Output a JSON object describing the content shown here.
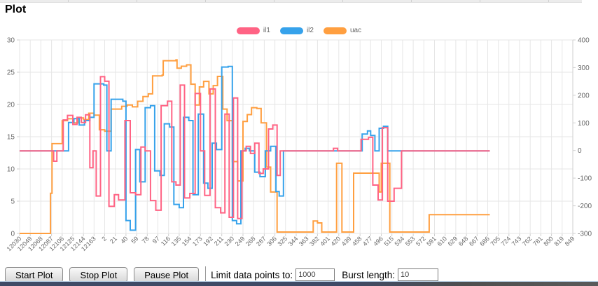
{
  "page": {
    "title": "Plot"
  },
  "legend": {
    "position": "top"
  },
  "controls": {
    "start_button": "Start Plot",
    "stop_button": "Stop Plot",
    "pause_button": "Pause Plot",
    "limit_label": "Limit data points to:",
    "limit_value": "1000",
    "burst_label": "Burst length:",
    "burst_value": "10"
  },
  "colors": {
    "il1": "#ff6384",
    "il2": "#36a2eb",
    "uac": "#ff9f40",
    "grid": "#e6e6e6",
    "axis_text": "#666666"
  },
  "chart_data": {
    "type": "line",
    "step": true,
    "title": "",
    "xlabel": "",
    "ylabel_left": "",
    "ylabel_right": "",
    "grid": true,
    "legend_position": "top",
    "x_tick_labels": [
      "12030",
      "12049",
      "12068",
      "12087",
      "12106",
      "12125",
      "12144",
      "12163",
      "2",
      "21",
      "40",
      "59",
      "78",
      "97",
      "116",
      "135",
      "154",
      "173",
      "192",
      "211",
      "230",
      "249",
      "268",
      "287",
      "306",
      "325",
      "344",
      "363",
      "382",
      "401",
      "420",
      "439",
      "458",
      "477",
      "496",
      "515",
      "534",
      "553",
      "572",
      "591",
      "610",
      "629",
      "648",
      "667",
      "686",
      "705",
      "724",
      "743",
      "762",
      "781",
      "800",
      "819",
      "849"
    ],
    "y_left": {
      "min": 0,
      "max": 30,
      "ticks": [
        0,
        5,
        10,
        15,
        20,
        25,
        30
      ]
    },
    "y_right": {
      "min": -300,
      "max": 400,
      "ticks": [
        -300,
        -200,
        -100,
        0,
        100,
        200,
        300,
        400
      ]
    },
    "series": [
      {
        "name": "il1",
        "axis": "left",
        "color": "#ff6384",
        "points": [
          [
            0,
            12.8
          ],
          [
            3.1,
            12.8
          ],
          [
            3.2,
            11.2
          ],
          [
            3.5,
            12.8
          ],
          [
            4.1,
            17.6
          ],
          [
            4.5,
            18.3
          ],
          [
            5.0,
            16.9
          ],
          [
            5.4,
            18.0
          ],
          [
            5.8,
            17.2
          ],
          [
            6.2,
            18.4
          ],
          [
            6.6,
            10.2
          ],
          [
            6.9,
            12.8
          ],
          [
            7.2,
            5.8
          ],
          [
            7.6,
            24.3
          ],
          [
            8.0,
            23.6
          ],
          [
            8.4,
            4.2
          ],
          [
            8.9,
            6.0
          ],
          [
            9.3,
            5.2
          ],
          [
            9.9,
            17.5
          ],
          [
            10.4,
            6.3
          ],
          [
            10.9,
            6.0
          ],
          [
            11.4,
            13.4
          ],
          [
            11.8,
            12.8
          ],
          [
            12.3,
            5.1
          ],
          [
            12.8,
            3.6
          ],
          [
            13.3,
            19.8
          ],
          [
            13.9,
            20.5
          ],
          [
            14.3,
            8.0
          ],
          [
            14.7,
            7.5
          ],
          [
            15.1,
            23.0
          ],
          [
            15.5,
            5.5
          ],
          [
            16.0,
            6.2
          ],
          [
            16.5,
            21.7
          ],
          [
            17.0,
            12.8
          ],
          [
            17.4,
            5.9
          ],
          [
            17.9,
            22.4
          ],
          [
            18.4,
            4.0
          ],
          [
            18.9,
            3.2
          ],
          [
            19.3,
            18.5
          ],
          [
            19.7,
            2.5
          ],
          [
            20.1,
            21.0
          ],
          [
            20.5,
            2.3
          ],
          [
            20.9,
            12.8
          ],
          [
            21.3,
            13.5
          ],
          [
            21.7,
            12.4
          ],
          [
            22.1,
            14.0
          ],
          [
            22.5,
            9.3
          ],
          [
            22.9,
            10.0
          ],
          [
            23.4,
            16.2
          ],
          [
            23.8,
            16.8
          ],
          [
            24.2,
            9.0
          ],
          [
            24.5,
            12.8
          ],
          [
            29.5,
            13.2
          ],
          [
            29.9,
            12.8
          ],
          [
            32.1,
            14.6
          ],
          [
            32.8,
            14.9
          ],
          [
            33.2,
            7.5
          ],
          [
            33.7,
            5.2
          ],
          [
            34.1,
            16.4
          ],
          [
            34.6,
            5.0
          ],
          [
            35.2,
            7.0
          ],
          [
            35.9,
            12.8
          ],
          [
            44.2,
            12.8
          ]
        ]
      },
      {
        "name": "il2",
        "axis": "left",
        "color": "#36a2eb",
        "points": [
          [
            0,
            12.8
          ],
          [
            4.4,
            12.8
          ],
          [
            4.6,
            17.2
          ],
          [
            5.1,
            17.8
          ],
          [
            5.6,
            16.8
          ],
          [
            6.1,
            17.5
          ],
          [
            6.6,
            18.0
          ],
          [
            7.0,
            23.2
          ],
          [
            7.9,
            23.0
          ],
          [
            8.2,
            12.8
          ],
          [
            8.6,
            20.8
          ],
          [
            9.7,
            20.5
          ],
          [
            10.0,
            2.0
          ],
          [
            10.4,
            0.5
          ],
          [
            10.9,
            13.0
          ],
          [
            11.3,
            8.0
          ],
          [
            11.8,
            19.5
          ],
          [
            12.3,
            19.8
          ],
          [
            12.7,
            9.7
          ],
          [
            13.2,
            9.0
          ],
          [
            13.6,
            17.0
          ],
          [
            14.1,
            16.5
          ],
          [
            14.5,
            4.5
          ],
          [
            15.0,
            4.0
          ],
          [
            15.4,
            18.0
          ],
          [
            15.9,
            17.5
          ],
          [
            16.3,
            6.0
          ],
          [
            16.8,
            18.5
          ],
          [
            17.3,
            7.8
          ],
          [
            17.7,
            7.0
          ],
          [
            18.1,
            14.0
          ],
          [
            18.5,
            13.0
          ],
          [
            19.0,
            25.8
          ],
          [
            19.6,
            25.9
          ],
          [
            20.0,
            2.0
          ],
          [
            20.4,
            1.5
          ],
          [
            20.8,
            12.8
          ],
          [
            21.2,
            13.2
          ],
          [
            21.6,
            12.8
          ],
          [
            22.1,
            9.5
          ],
          [
            22.6,
            8.8
          ],
          [
            23.1,
            12.8
          ],
          [
            23.6,
            13.5
          ],
          [
            24.1,
            6.5
          ],
          [
            24.4,
            5.8
          ],
          [
            24.8,
            12.8
          ],
          [
            32.0,
            12.8
          ],
          [
            32.2,
            15.4
          ],
          [
            32.7,
            15.9
          ],
          [
            33.0,
            15.2
          ],
          [
            33.4,
            12.8
          ],
          [
            33.8,
            16.3
          ],
          [
            34.2,
            16.6
          ],
          [
            34.6,
            12.8
          ],
          [
            44.2,
            12.8
          ]
        ]
      },
      {
        "name": "uac",
        "axis": "right",
        "color": "#ff9f40",
        "points": [
          [
            0,
            -300
          ],
          [
            2.85,
            -300
          ],
          [
            2.9,
            -155
          ],
          [
            3.05,
            25
          ],
          [
            3.9,
            25
          ],
          [
            4.0,
            108
          ],
          [
            4.5,
            115
          ],
          [
            5.0,
            100
          ],
          [
            5.5,
            118
          ],
          [
            6.0,
            112
          ],
          [
            6.5,
            135
          ],
          [
            7.0,
            128
          ],
          [
            7.5,
            75
          ],
          [
            8.0,
            70
          ],
          [
            8.6,
            150
          ],
          [
            9.5,
            150
          ],
          [
            9.6,
            160
          ],
          [
            10.1,
            165
          ],
          [
            10.6,
            158
          ],
          [
            11.1,
            178
          ],
          [
            11.6,
            195
          ],
          [
            12.1,
            205
          ],
          [
            12.5,
            270
          ],
          [
            13.4,
            273
          ],
          [
            13.5,
            325
          ],
          [
            14.7,
            328
          ],
          [
            14.8,
            298
          ],
          [
            15.2,
            305
          ],
          [
            15.7,
            310
          ],
          [
            16.1,
            240
          ],
          [
            16.5,
            165
          ],
          [
            16.9,
            230
          ],
          [
            17.3,
            250
          ],
          [
            17.8,
            205
          ],
          [
            18.2,
            235
          ],
          [
            18.6,
            268
          ],
          [
            19.1,
            150
          ],
          [
            19.5,
            108
          ],
          [
            20.0,
            -40
          ],
          [
            20.5,
            -110
          ],
          [
            21.0,
            105
          ],
          [
            21.4,
            130
          ],
          [
            21.8,
            155
          ],
          [
            22.3,
            152
          ],
          [
            22.7,
            100
          ],
          [
            23.2,
            -60
          ],
          [
            23.6,
            -150
          ],
          [
            24.2,
            -295
          ],
          [
            27.4,
            -295
          ],
          [
            27.6,
            -255
          ],
          [
            28.0,
            -262
          ],
          [
            28.4,
            -295
          ],
          [
            29.7,
            -295
          ],
          [
            29.8,
            -46
          ],
          [
            30.2,
            -46
          ],
          [
            30.3,
            -295
          ],
          [
            31.3,
            -295
          ],
          [
            31.4,
            -82
          ],
          [
            33.6,
            -82
          ],
          [
            33.8,
            -150
          ],
          [
            34.0,
            -46
          ],
          [
            34.6,
            -46
          ],
          [
            34.8,
            -295
          ],
          [
            38.4,
            -295
          ],
          [
            38.5,
            -232
          ],
          [
            44.2,
            -232
          ]
        ]
      }
    ]
  }
}
